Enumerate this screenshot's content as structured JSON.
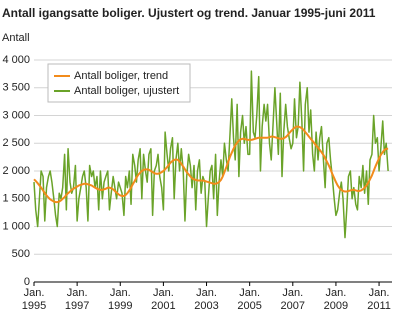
{
  "chart_data": {
    "type": "line",
    "title": "Antall igangsatte boliger. Ujustert og trend. Januar 1995-juni 2011",
    "y_label": "Antall",
    "x": [
      1995,
      1995.08,
      1995.17,
      1995.25,
      1995.33,
      1995.42,
      1995.5,
      1995.58,
      1995.67,
      1995.75,
      1995.83,
      1995.92,
      1996,
      1996.08,
      1996.17,
      1996.25,
      1996.33,
      1996.42,
      1996.5,
      1996.58,
      1996.67,
      1996.75,
      1996.83,
      1996.92,
      1997,
      1997.08,
      1997.17,
      1997.25,
      1997.33,
      1997.42,
      1997.5,
      1997.58,
      1997.67,
      1997.75,
      1997.83,
      1997.92,
      1998,
      1998.08,
      1998.17,
      1998.25,
      1998.33,
      1998.42,
      1998.5,
      1998.58,
      1998.67,
      1998.75,
      1998.83,
      1998.92,
      1999,
      1999.08,
      1999.17,
      1999.25,
      1999.33,
      1999.42,
      1999.5,
      1999.58,
      1999.67,
      1999.75,
      1999.83,
      1999.92,
      2000,
      2000.08,
      2000.17,
      2000.25,
      2000.33,
      2000.42,
      2000.5,
      2000.58,
      2000.67,
      2000.75,
      2000.83,
      2000.92,
      2001,
      2001.08,
      2001.17,
      2001.25,
      2001.33,
      2001.42,
      2001.5,
      2001.58,
      2001.67,
      2001.75,
      2001.83,
      2001.92,
      2002,
      2002.08,
      2002.17,
      2002.25,
      2002.33,
      2002.42,
      2002.5,
      2002.58,
      2002.67,
      2002.75,
      2002.83,
      2002.92,
      2003,
      2003.08,
      2003.17,
      2003.25,
      2003.33,
      2003.42,
      2003.5,
      2003.58,
      2003.67,
      2003.75,
      2003.83,
      2003.92,
      2004,
      2004.08,
      2004.17,
      2004.25,
      2004.33,
      2004.42,
      2004.5,
      2004.58,
      2004.67,
      2004.75,
      2004.83,
      2004.92,
      2005,
      2005.08,
      2005.17,
      2005.25,
      2005.33,
      2005.42,
      2005.5,
      2005.58,
      2005.67,
      2005.75,
      2005.83,
      2005.92,
      2006,
      2006.08,
      2006.17,
      2006.25,
      2006.33,
      2006.42,
      2006.5,
      2006.58,
      2006.67,
      2006.75,
      2006.83,
      2006.92,
      2007,
      2007.08,
      2007.17,
      2007.25,
      2007.33,
      2007.42,
      2007.5,
      2007.58,
      2007.67,
      2007.75,
      2007.83,
      2007.92,
      2008,
      2008.08,
      2008.17,
      2008.25,
      2008.33,
      2008.42,
      2008.5,
      2008.58,
      2008.67,
      2008.75,
      2008.83,
      2008.92,
      2009,
      2009.08,
      2009.17,
      2009.25,
      2009.33,
      2009.42,
      2009.5,
      2009.58,
      2009.67,
      2009.75,
      2009.83,
      2009.92,
      2010,
      2010.08,
      2010.17,
      2010.25,
      2010.33,
      2010.42,
      2010.5,
      2010.58,
      2010.67,
      2010.75,
      2010.83,
      2010.92,
      2011,
      2011.08,
      2011.17,
      2011.25,
      2011.33,
      2011.42
    ],
    "series": [
      {
        "name": "Antall boliger, trend",
        "color": "#f28b1b",
        "width": 2,
        "values": [
          1850,
          1820,
          1780,
          1740,
          1700,
          1650,
          1600,
          1560,
          1520,
          1490,
          1470,
          1450,
          1440,
          1440,
          1450,
          1470,
          1500,
          1530,
          1570,
          1600,
          1630,
          1660,
          1680,
          1700,
          1720,
          1740,
          1750,
          1760,
          1770,
          1770,
          1760,
          1750,
          1740,
          1720,
          1700,
          1680,
          1670,
          1660,
          1660,
          1670,
          1680,
          1700,
          1700,
          1690,
          1670,
          1640,
          1610,
          1580,
          1560,
          1550,
          1550,
          1570,
          1600,
          1650,
          1700,
          1760,
          1820,
          1880,
          1930,
          1970,
          2000,
          2020,
          2030,
          2030,
          2020,
          2000,
          1980,
          1960,
          1950,
          1950,
          1960,
          1980,
          2000,
          2030,
          2070,
          2110,
          2150,
          2180,
          2200,
          2210,
          2200,
          2170,
          2130,
          2080,
          2030,
          1980,
          1940,
          1900,
          1870,
          1850,
          1840,
          1830,
          1830,
          1830,
          1830,
          1820,
          1810,
          1800,
          1790,
          1780,
          1770,
          1770,
          1780,
          1800,
          1840,
          1900,
          1980,
          2070,
          2160,
          2250,
          2330,
          2400,
          2460,
          2510,
          2550,
          2570,
          2580,
          2580,
          2570,
          2560,
          2560,
          2560,
          2570,
          2580,
          2590,
          2600,
          2600,
          2600,
          2600,
          2600,
          2600,
          2610,
          2620,
          2620,
          2610,
          2600,
          2590,
          2580,
          2580,
          2590,
          2610,
          2640,
          2680,
          2720,
          2750,
          2780,
          2800,
          2800,
          2790,
          2770,
          2740,
          2700,
          2660,
          2620,
          2580,
          2540,
          2500,
          2460,
          2420,
          2380,
          2340,
          2290,
          2230,
          2170,
          2100,
          2030,
          1950,
          1870,
          1800,
          1740,
          1690,
          1660,
          1640,
          1630,
          1630,
          1640,
          1650,
          1660,
          1660,
          1650,
          1640,
          1640,
          1650,
          1670,
          1700,
          1740,
          1790,
          1850,
          1920,
          2000,
          2080,
          2160,
          2230,
          2290,
          2340,
          2380,
          2400,
          2400
        ]
      },
      {
        "name": "Antall boliger, ujustert",
        "color": "#6aa329",
        "width": 1.5,
        "values": [
          1800,
          1300,
          1000,
          1500,
          2000,
          1900,
          1100,
          1700,
          1900,
          2000,
          1800,
          1500,
          1200,
          1000,
          1600,
          1500,
          1700,
          2300,
          1300,
          2400,
          1800,
          1600,
          1700,
          2100,
          1100,
          1500,
          1700,
          1900,
          2000,
          1700,
          1100,
          2100,
          1900,
          2000,
          1700,
          1900,
          1300,
          2000,
          1500,
          1800,
          1900,
          2000,
          1300,
          1600,
          1900,
          1700,
          1500,
          1800,
          1700,
          1600,
          1200,
          1900,
          1700,
          2000,
          1400,
          2300,
          2100,
          1800,
          2200,
          2400,
          1500,
          2300,
          2000,
          1800,
          2300,
          2400,
          1200,
          2000,
          2100,
          2300,
          1900,
          1700,
          1300,
          2700,
          2300,
          2000,
          2400,
          2600,
          1500,
          2200,
          2500,
          2000,
          2400,
          2000,
          1100,
          1900,
          2300,
          2100,
          1700,
          2100,
          1300,
          2000,
          2200,
          1600,
          1900,
          1800,
          1000,
          1500,
          2000,
          2100,
          1500,
          2300,
          1200,
          1800,
          2200,
          1900,
          2500,
          2200,
          2000,
          2600,
          3300,
          2600,
          2200,
          3200,
          1900,
          2700,
          3000,
          2500,
          2800,
          2300,
          2300,
          3800,
          2700,
          2600,
          3000,
          3700,
          2000,
          2800,
          3200,
          2900,
          3200,
          2500,
          2200,
          2800,
          3500,
          2900,
          2300,
          3400,
          1900,
          2700,
          3200,
          2800,
          2600,
          2400,
          2500,
          3300,
          2600,
          2800,
          3600,
          2900,
          2000,
          3200,
          3500,
          2700,
          3100,
          2300,
          2000,
          2700,
          2200,
          2600,
          2800,
          2200,
          1700,
          2500,
          2600,
          2200,
          1900,
          1500,
          1200,
          1300,
          1600,
          1800,
          1500,
          800,
          1300,
          1900,
          2000,
          1500,
          1700,
          1400,
          1300,
          1900,
          1700,
          2100,
          1600,
          2000,
          1400,
          2200,
          2300,
          3000,
          2500,
          2600,
          2000,
          2400,
          2900,
          2300,
          2500,
          2000
        ]
      }
    ],
    "xlim": [
      1995,
      2011.6
    ],
    "xticks": [
      {
        "value": 1995,
        "label": [
          "Jan.",
          "1995"
        ]
      },
      {
        "value": 1997,
        "label": [
          "Jan.",
          "1997"
        ]
      },
      {
        "value": 1999,
        "label": [
          "Jan.",
          "1999"
        ]
      },
      {
        "value": 2001,
        "label": [
          "Jan.",
          "2001"
        ]
      },
      {
        "value": 2003,
        "label": [
          "Jan.",
          "2003"
        ]
      },
      {
        "value": 2005,
        "label": [
          "Jan.",
          "2005"
        ]
      },
      {
        "value": 2007,
        "label": [
          "Jan.",
          "2007"
        ]
      },
      {
        "value": 2009,
        "label": [
          "Jan.",
          "2009"
        ]
      },
      {
        "value": 2011,
        "label": [
          "Jan.",
          "2011"
        ]
      }
    ],
    "ylim": [
      0,
      4000
    ],
    "yticks": [
      0,
      500,
      {
        "value": 1000,
        "label": "1 000"
      },
      {
        "value": 1500,
        "label": "1 500"
      },
      {
        "value": 2000,
        "label": "2 000"
      },
      {
        "value": 2500,
        "label": "2 500"
      },
      {
        "value": 3000,
        "label": "3 000"
      },
      {
        "value": 3500,
        "label": "3 500"
      },
      {
        "value": 4000,
        "label": "4 000"
      }
    ],
    "grid": true,
    "legend": "upper left"
  }
}
